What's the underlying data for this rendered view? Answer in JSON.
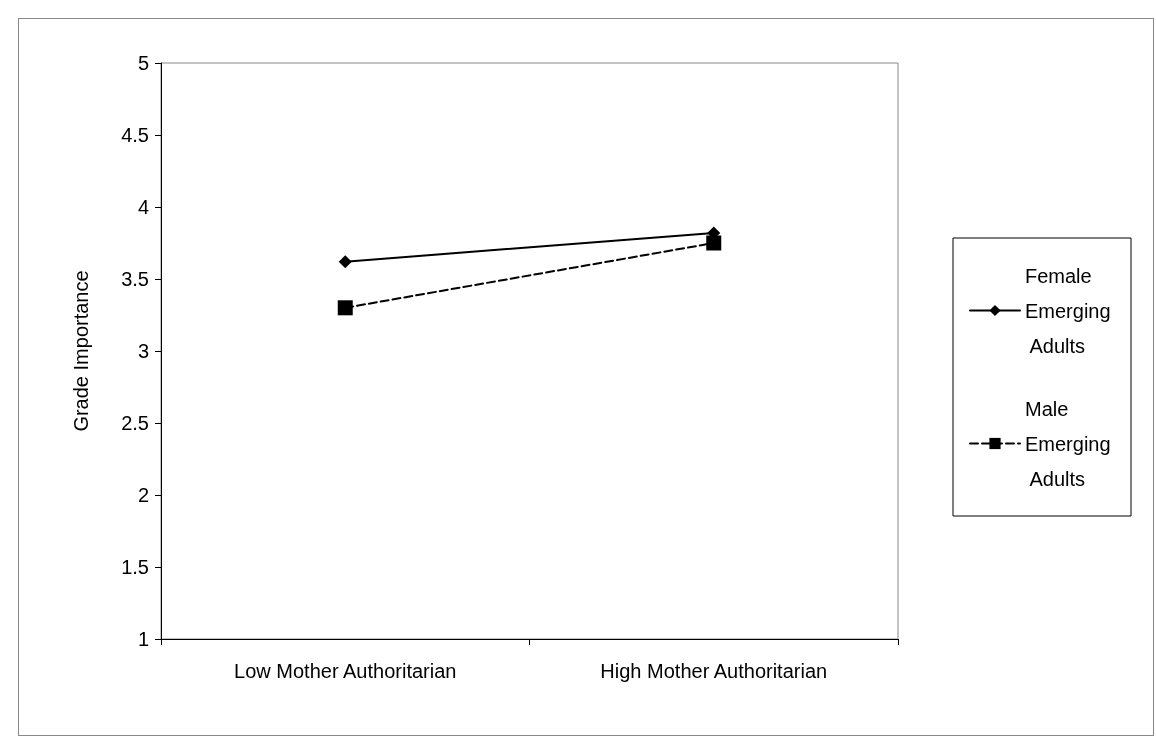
{
  "chart_data": {
    "type": "line",
    "ylabel": "Grade Importance",
    "categories": [
      "Low Mother Authoritarian",
      "High Mother Authoritarian"
    ],
    "series": [
      {
        "name": "Female Emerging Adults",
        "color": "#000000",
        "values": [
          3.62,
          3.82
        ],
        "marker": "diamond",
        "line_style": "solid"
      },
      {
        "name": "Male Emerging Adults",
        "color": "#000000",
        "values": [
          3.3,
          3.75
        ],
        "marker": "square",
        "line_style": "dashed"
      }
    ],
    "ylim": [
      1,
      5
    ],
    "yticks": [
      1,
      1.5,
      2,
      2.5,
      3,
      3.5,
      4,
      4.5,
      5
    ],
    "grid": false,
    "legend": "right"
  }
}
